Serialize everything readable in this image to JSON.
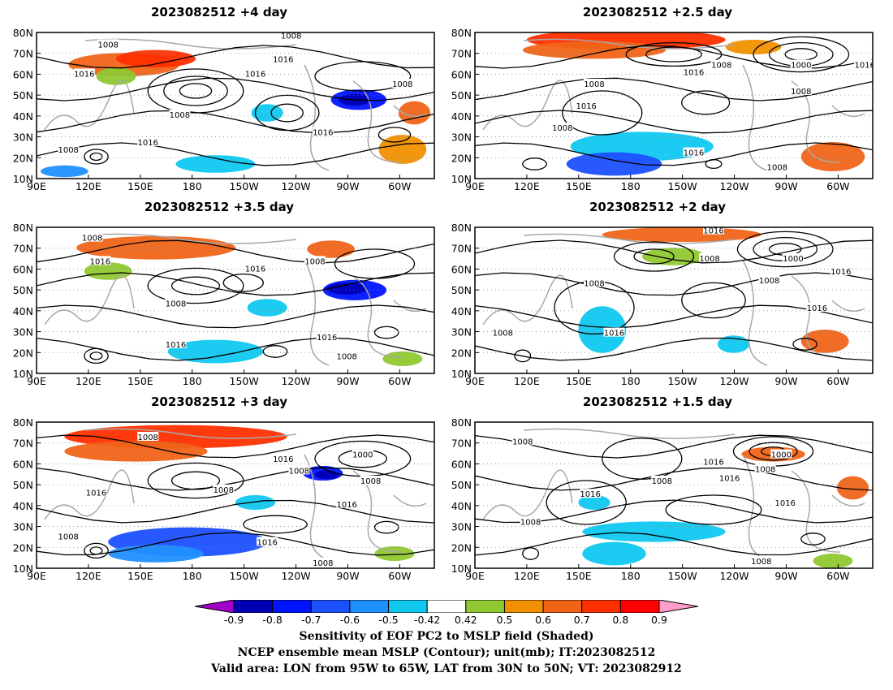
{
  "panels": [
    {
      "title": "2023082512  +4 day",
      "col": 0,
      "row": 0
    },
    {
      "title": "2023082512  +2.5 day",
      "col": 1,
      "row": 0
    },
    {
      "title": "2023082512  +3.5 day",
      "col": 0,
      "row": 1
    },
    {
      "title": "2023082512  +2 day",
      "col": 1,
      "row": 1
    },
    {
      "title": "2023082512  +3 day",
      "col": 0,
      "row": 2
    },
    {
      "title": "2023082512  +1.5 day",
      "col": 1,
      "row": 2
    }
  ],
  "lat_labels": [
    "80N",
    "70N",
    "60N",
    "50N",
    "40N",
    "30N",
    "20N",
    "10N"
  ],
  "lon_labels": [
    "90E",
    "120E",
    "150E",
    "180",
    "150W",
    "120W",
    "90W",
    "60W"
  ],
  "contour_labels": [
    "1008",
    "1016",
    "1000"
  ],
  "colorbar": {
    "labels": [
      "-0.9",
      "-0.8",
      "-0.7",
      "-0.6",
      "-0.5",
      "-0.42",
      "0.42",
      "0.5",
      "0.6",
      "0.7",
      "0.8",
      "0.9"
    ],
    "colors": [
      "#a000c8",
      "#0000b4",
      "#0014ff",
      "#1c50ff",
      "#2090ff",
      "#10c8f0",
      "#ffffff",
      "#90c832",
      "#f09000",
      "#f06418",
      "#ff3000",
      "#ff0000",
      "#ff9ecc"
    ]
  },
  "captions": [
    "Sensitivity of EOF PC2 to MSLP field (Shaded)",
    "NCEP ensemble mean MSLP (Contour); unit(mb); IT:2023082512",
    "Valid area: LON from 95W to 65W, LAT from 30N to 50N; VT: 2023082912"
  ]
}
